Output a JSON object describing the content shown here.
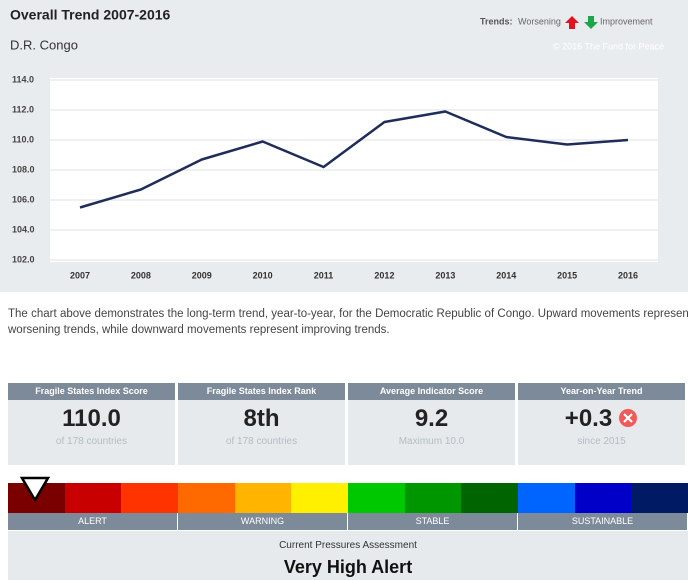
{
  "chart_data": {
    "type": "line",
    "title": "Overall Trend 2007-2016",
    "subtitle": "D.R. Congo",
    "legend_title": "Trends:",
    "legend_items": [
      "Worsening",
      "Improvement"
    ],
    "legend_colors": [
      "#e0141e",
      "#1aa64a"
    ],
    "copyright": "© 2016 The Fund for Peace",
    "categories": [
      "2007",
      "2008",
      "2009",
      "2010",
      "2011",
      "2012",
      "2013",
      "2014",
      "2015",
      "2016"
    ],
    "series": [
      {
        "name": "D.R. Congo",
        "color": "#1f2d5a",
        "values": [
          105.5,
          106.7,
          108.7,
          109.9,
          108.2,
          111.2,
          111.9,
          110.2,
          109.7,
          110.0
        ]
      }
    ],
    "ylim": [
      102,
      114
    ],
    "yticks": [
      {
        "value": 102,
        "label": "102.0"
      },
      {
        "value": 104,
        "label": "104.0"
      },
      {
        "value": 106,
        "label": "106.0"
      },
      {
        "value": 108,
        "label": "108.0"
      },
      {
        "value": 110,
        "label": "110.0"
      },
      {
        "value": 112,
        "label": "112.0"
      },
      {
        "value": 114,
        "label": "114.0"
      }
    ],
    "grid": true
  },
  "description": "The chart above demonstrates the long-term trend, year-to-year, for the Democratic Republic of Congo. Upward movements represent worsening trends, while downward movements represent improving trends.",
  "stats": [
    {
      "label": "Fragile States Index Score",
      "value": "110.0",
      "sub": "of 178 countries"
    },
    {
      "label": "Fragile States Index Rank",
      "value": "8th",
      "sub": "of 178 countries"
    },
    {
      "label": "Average Indicator Score",
      "value": "9.2",
      "sub": "Maximum 10.0"
    },
    {
      "label": "Year-on-Year Trend",
      "value": "+0.3",
      "sub": "since 2015"
    }
  ],
  "scale": {
    "colors": [
      "#7a0000",
      "#c80000",
      "#ff3300",
      "#ff6a00",
      "#ffb400",
      "#fff000",
      "#00c800",
      "#009600",
      "#006400",
      "#0064ff",
      "#0000c8",
      "#001a64"
    ],
    "bands": [
      "ALERT",
      "WARNING",
      "STABLE",
      "SUSTAINABLE"
    ]
  },
  "assessment": {
    "label": "Current Pressures Assessment",
    "value": "Very High Alert"
  }
}
